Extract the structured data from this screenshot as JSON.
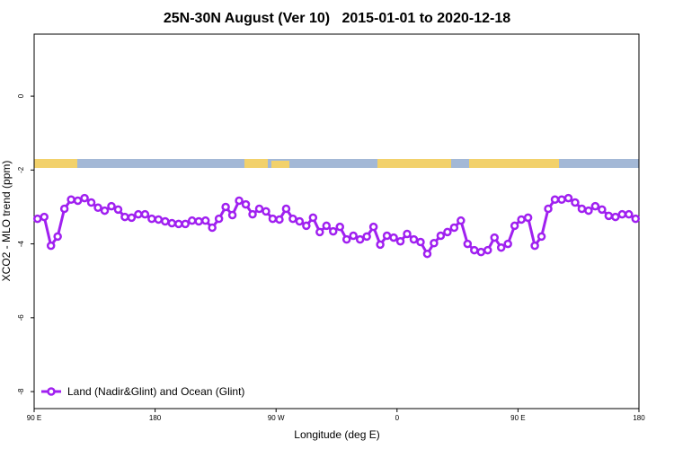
{
  "chart_data": {
    "type": "line",
    "title": "25N-30N August (Ver 10)   2015-01-01 to 2020-12-18",
    "x_label": "Longitude (deg E)",
    "y_label": "XCO2 - MLO trend (ppm)",
    "xlim": [
      90,
      540
    ],
    "ylim": [
      -8.46,
      1.68
    ],
    "xticks": [
      {
        "value": 90,
        "label": "90 E"
      },
      180,
      {
        "value": 270,
        "label": "90 W"
      },
      {
        "value": 360,
        "label": "0"
      },
      {
        "value": 450,
        "label": "90 E"
      },
      {
        "value": 540,
        "label": "180"
      }
    ],
    "yticks": [
      0,
      -2,
      -4,
      -6,
      -8
    ],
    "legend": "bottom-left",
    "x": [
      92.5,
      97.5,
      102.5,
      107.5,
      112.5,
      117.5,
      122.5,
      127.5,
      132.5,
      137.5,
      142.5,
      147.5,
      152.5,
      157.5,
      162.5,
      167.5,
      172.5,
      177.5,
      182.5,
      187.5,
      192.5,
      197.5,
      202.5,
      207.5,
      212.5,
      217.5,
      222.5,
      227.5,
      232.5,
      237.5,
      242.5,
      247.5,
      252.5,
      257.5,
      262.5,
      267.5,
      272.5,
      277.5,
      282.5,
      287.5,
      292.5,
      297.5,
      302.5,
      307.5,
      312.5,
      317.5,
      322.5,
      327.5,
      332.5,
      337.5,
      342.5,
      347.5,
      352.5,
      357.5,
      362.5,
      367.5,
      372.5,
      377.5,
      382.5,
      387.5,
      392.5,
      397.5,
      402.5,
      407.5,
      412.5,
      417.5,
      422.5,
      427.5,
      432.5,
      437.5,
      442.5,
      447.5,
      452.5,
      457.5,
      462.5,
      467.5,
      472.5,
      477.5,
      482.5,
      487.5,
      492.5,
      497.5,
      502.5,
      507.5,
      512.5,
      517.5,
      522.5,
      527.5,
      532.5,
      537.5
    ],
    "series": [
      {
        "name": "Land (Nadir&Glint) and Ocean (Glint)",
        "color": "#a020f0",
        "values": [
          -3.32,
          -3.27,
          -4.05,
          -3.8,
          -3.05,
          -2.8,
          -2.83,
          -2.76,
          -2.88,
          -3.02,
          -3.1,
          -2.98,
          -3.07,
          -3.27,
          -3.29,
          -3.2,
          -3.2,
          -3.32,
          -3.34,
          -3.39,
          -3.44,
          -3.46,
          -3.46,
          -3.37,
          -3.39,
          -3.37,
          -3.56,
          -3.32,
          -3.0,
          -3.22,
          -2.83,
          -2.93,
          -3.2,
          -3.05,
          -3.12,
          -3.32,
          -3.34,
          -3.05,
          -3.32,
          -3.39,
          -3.51,
          -3.29,
          -3.68,
          -3.51,
          -3.66,
          -3.54,
          -3.88,
          -3.78,
          -3.88,
          -3.8,
          -3.54,
          -4.02,
          -3.78,
          -3.83,
          -3.93,
          -3.73,
          -3.88,
          -3.95,
          -4.27,
          -3.98,
          -3.78,
          -3.68,
          -3.56,
          -3.37,
          -4.0,
          -4.17,
          -4.22,
          -4.17,
          -3.83,
          -4.1,
          -4.0,
          -3.51,
          -3.34,
          -3.29,
          -4.05,
          -3.8,
          -3.05,
          -2.8,
          -2.8,
          -2.76,
          -2.88,
          -3.05,
          -3.1,
          -2.98,
          -3.07,
          -3.24,
          -3.27,
          -3.2,
          -3.2,
          -3.32
        ]
      }
    ]
  }
}
